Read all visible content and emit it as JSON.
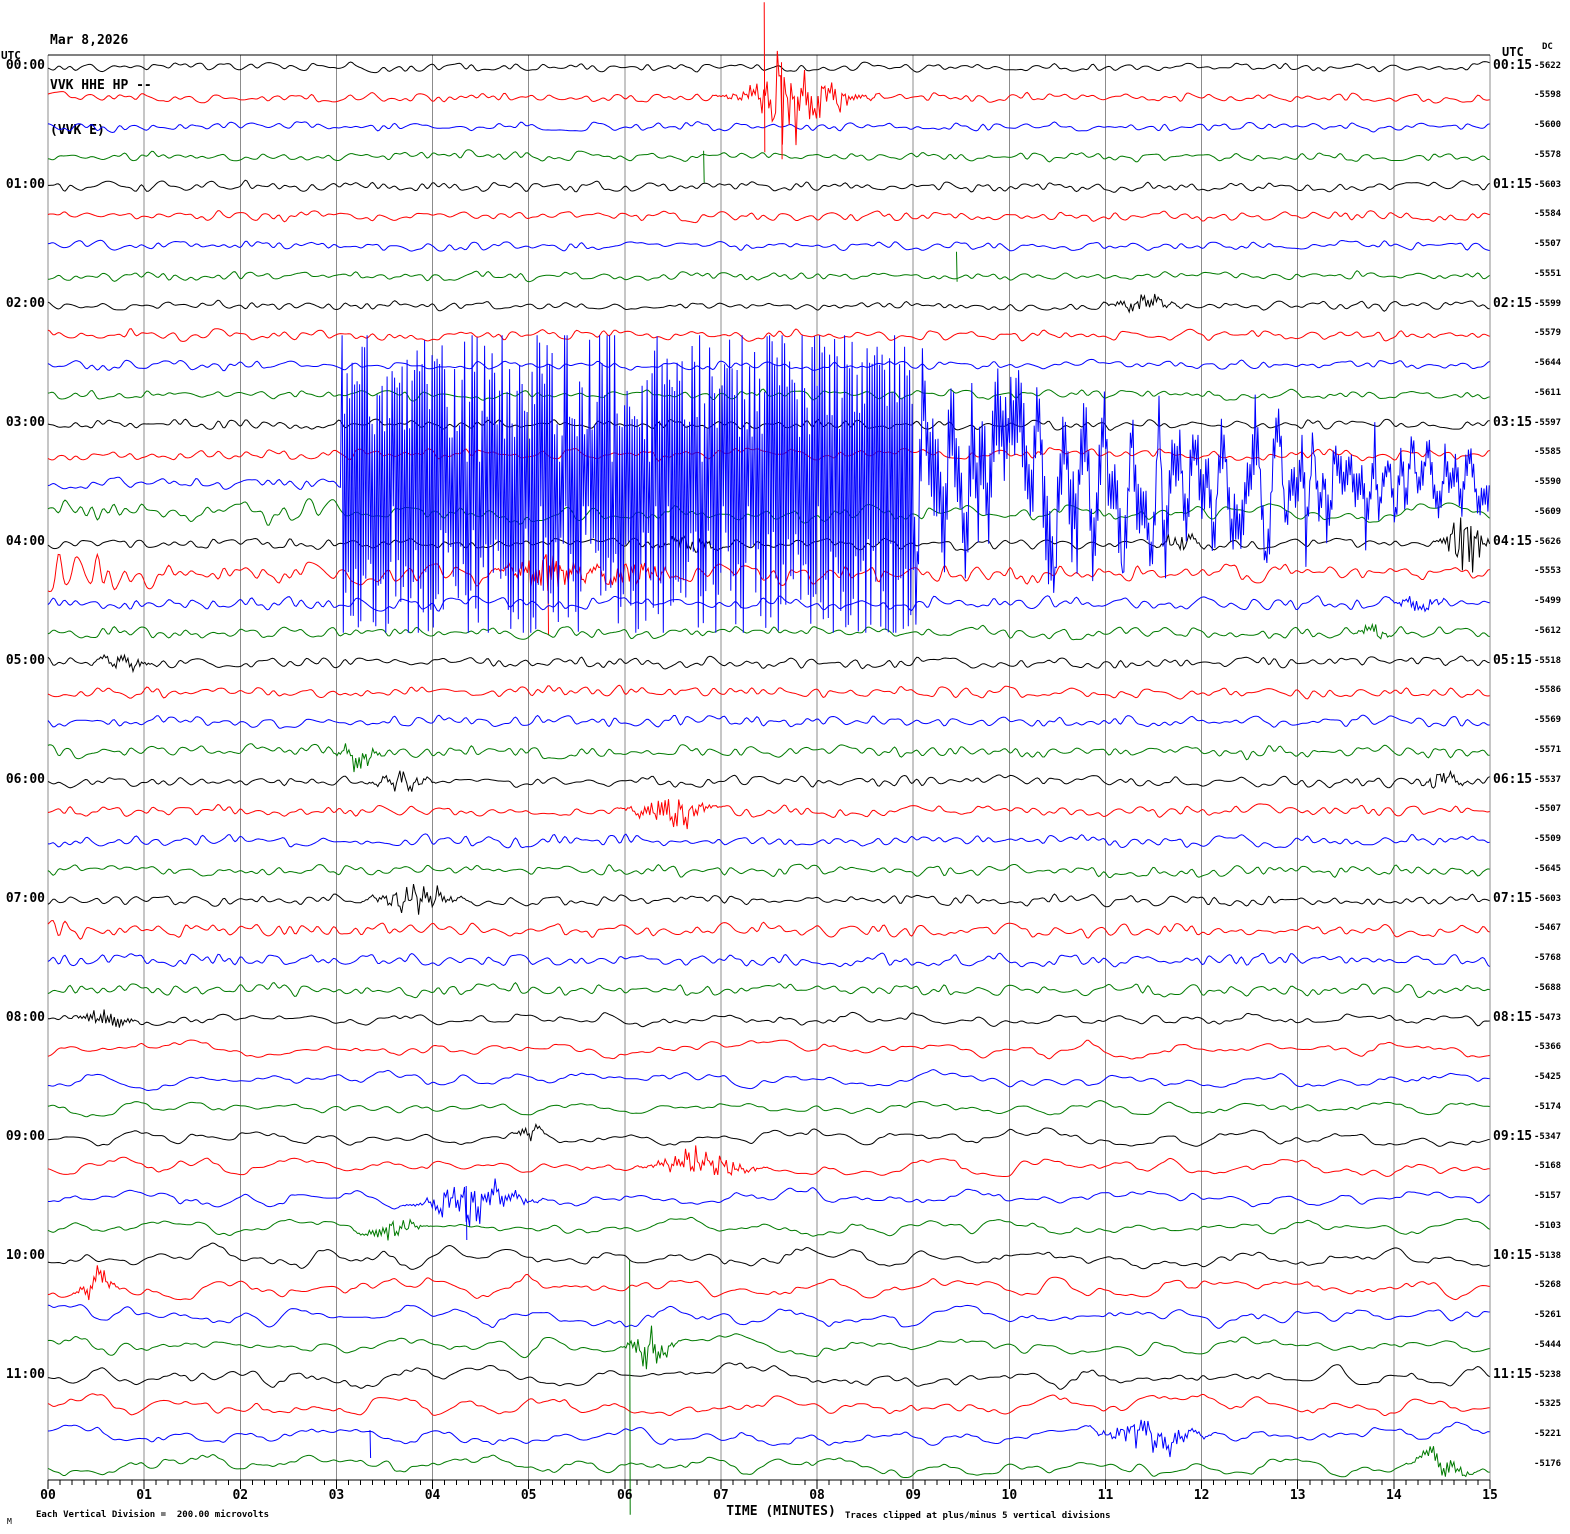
{
  "header": {
    "date": "Mar 8,2026",
    "station": "VVK HHE HP --",
    "channel": "(VVK E)"
  },
  "axes": {
    "left_utc_label": "UTC",
    "right_utc_label": "UTC",
    "dc_label": "DC",
    "x_title": "TIME (MINUTES)"
  },
  "footer": {
    "prefix": "M",
    "left_note": "Each Vertical Division =  200.00 microvolts",
    "right_note": "Traces clipped at plus/minus 5 vertical divisions"
  },
  "chart_data": {
    "type": "line",
    "subtype": "helicorder-seismogram",
    "minutes_per_row": 15,
    "x_range_minutes": [
      0,
      15
    ],
    "clip_divisions": 5,
    "microvolts_per_division": 200,
    "grid": "vertical-minute-lines",
    "trace_color_cycle": [
      "#000000",
      "#ff0000",
      "#0000ff",
      "#007a00"
    ],
    "grid_color": "#8c8c8c",
    "x_ticks": [
      "00",
      "01",
      "02",
      "03",
      "04",
      "05",
      "06",
      "07",
      "08",
      "09",
      "10",
      "11",
      "12",
      "13",
      "14",
      "15"
    ],
    "right_labels": [
      "00:15",
      "01:15",
      "02:15",
      "03:15",
      "04:15",
      "05:15",
      "06:15",
      "07:15",
      "08:15",
      "09:15",
      "10:15",
      "11:15"
    ],
    "dc_values": [
      -5622,
      -5598,
      -5600,
      -5578,
      -5603,
      -5584,
      -5507,
      -5551,
      -5599,
      -5579,
      -5644,
      -5611,
      -5597,
      -5585,
      -5590,
      -5609,
      -5626,
      -5553,
      -5499,
      -5612,
      -5518,
      -5586,
      -5569,
      -5571,
      -5537,
      -5507,
      -5509,
      -5645,
      -5603,
      -5467,
      -5768,
      -5688,
      -5473,
      -5366,
      -5425,
      -5174,
      -5347,
      -5168,
      -5157,
      -5103,
      -5138,
      -5268,
      -5261,
      -5444,
      -5238,
      -5325,
      -5221,
      -5176
    ],
    "rows": [
      {
        "utc": "00:00",
        "amp": 5,
        "slow": 0,
        "events": []
      },
      {
        "utc": "00:15",
        "amp": 5,
        "slow": 0,
        "events": [
          {
            "type": "burst",
            "t0": 7.15,
            "t1": 8.45,
            "amp": 30
          },
          {
            "type": "burst",
            "t0": 7.35,
            "t1": 7.85,
            "amp": 16
          },
          {
            "type": "spike",
            "t": 7.45,
            "up": 95,
            "down": 55
          },
          {
            "type": "spike",
            "t": 7.63,
            "up": 35,
            "down": 62
          }
        ]
      },
      {
        "utc": "00:30",
        "amp": 5,
        "slow": 0,
        "events": []
      },
      {
        "utc": "00:45",
        "amp": 5,
        "slow": 0,
        "events": [
          {
            "type": "spike",
            "t": 6.82,
            "up": 6,
            "down": 26
          }
        ]
      },
      {
        "utc": "01:00",
        "amp": 5.5,
        "slow": 0,
        "events": []
      },
      {
        "utc": "01:15",
        "amp": 5,
        "slow": 0,
        "events": []
      },
      {
        "utc": "01:30",
        "amp": 5,
        "slow": 0,
        "events": []
      },
      {
        "utc": "01:45",
        "amp": 5,
        "slow": 0,
        "events": [
          {
            "type": "spike",
            "t": 9.45,
            "up": 24,
            "down": 6
          }
        ]
      },
      {
        "utc": "02:00",
        "amp": 5,
        "slow": 0,
        "events": [
          {
            "type": "burst",
            "t0": 11.05,
            "t1": 11.7,
            "amp": 12
          }
        ]
      },
      {
        "utc": "02:15",
        "amp": 6,
        "slow": 0,
        "events": []
      },
      {
        "utc": "02:30",
        "amp": 5,
        "slow": 0,
        "events": []
      },
      {
        "utc": "02:45",
        "amp": 5,
        "slow": 0,
        "events": []
      },
      {
        "utc": "03:00",
        "amp": 5.5,
        "slow": 0,
        "events": []
      },
      {
        "utc": "03:15",
        "amp": 6,
        "slow": 0,
        "events": []
      },
      {
        "utc": "03:30",
        "amp": 6,
        "slow": 0,
        "events": [
          {
            "type": "clip",
            "t0": 3.05,
            "t1": 9.0
          },
          {
            "type": "decay",
            "t0": 9.0,
            "t1": 15,
            "a0": 115,
            "a1": 30
          }
        ]
      },
      {
        "utc": "03:45",
        "amp": 11,
        "slow": 0.5,
        "env": [
          [
            0,
            24
          ],
          [
            1.5,
            18
          ],
          [
            3.5,
            12
          ],
          [
            15,
            10
          ]
        ],
        "events": []
      },
      {
        "utc": "04:00",
        "amp": 6,
        "slow": 0,
        "events": [
          {
            "type": "burst",
            "t0": 6.3,
            "t1": 7.0,
            "amp": 9
          },
          {
            "type": "burst",
            "t0": 11.55,
            "t1": 12.0,
            "amp": 10
          },
          {
            "type": "burst",
            "t0": 14.5,
            "t1": 15,
            "amp": 40
          }
        ]
      },
      {
        "utc": "04:15",
        "amp": 7,
        "slow": 0,
        "env": [
          [
            0,
            40
          ],
          [
            0.5,
            26
          ],
          [
            1.3,
            12
          ],
          [
            15,
            8
          ]
        ],
        "events": [
          {
            "type": "burst",
            "t0": 4.75,
            "t1": 5.65,
            "amp": 26
          },
          {
            "type": "burst",
            "t0": 5.65,
            "t1": 6.5,
            "amp": 15
          },
          {
            "type": "spike",
            "t": 5.2,
            "up": 18,
            "down": 62
          }
        ]
      },
      {
        "utc": "04:30",
        "amp": 7,
        "slow": 0,
        "events": [
          {
            "type": "burst",
            "t0": 14.0,
            "t1": 14.5,
            "amp": 11
          }
        ]
      },
      {
        "utc": "04:45",
        "amp": 6.5,
        "slow": 0,
        "events": [
          {
            "type": "burst",
            "t0": 13.6,
            "t1": 13.95,
            "amp": 9
          }
        ]
      },
      {
        "utc": "05:00",
        "amp": 6,
        "slow": 0,
        "events": [
          {
            "type": "burst",
            "t0": 0.5,
            "t1": 1.1,
            "amp": 8
          }
        ]
      },
      {
        "utc": "05:15",
        "amp": 6,
        "slow": 0,
        "events": []
      },
      {
        "utc": "05:30",
        "amp": 6.5,
        "slow": 0,
        "events": []
      },
      {
        "utc": "05:45",
        "amp": 6.5,
        "slow": 0,
        "events": [
          {
            "type": "burst",
            "t0": 3.0,
            "t1": 3.45,
            "amp": 16
          }
        ]
      },
      {
        "utc": "06:00",
        "amp": 6,
        "slow": 0,
        "events": [
          {
            "type": "burst",
            "t0": 3.35,
            "t1": 4.0,
            "amp": 9
          },
          {
            "type": "burst",
            "t0": 14.3,
            "t1": 14.75,
            "amp": 9
          }
        ]
      },
      {
        "utc": "06:15",
        "amp": 6,
        "slow": 0,
        "events": [
          {
            "type": "burst",
            "t0": 6.05,
            "t1": 6.9,
            "amp": 20
          }
        ]
      },
      {
        "utc": "06:30",
        "amp": 6.5,
        "slow": 0,
        "events": []
      },
      {
        "utc": "06:45",
        "amp": 6.5,
        "slow": 0,
        "events": []
      },
      {
        "utc": "07:00",
        "amp": 6,
        "slow": 0,
        "events": [
          {
            "type": "burst",
            "t0": 3.35,
            "t1": 4.3,
            "amp": 13
          }
        ]
      },
      {
        "utc": "07:15",
        "amp": 6.5,
        "slow": 0,
        "env": [
          [
            0,
            16
          ],
          [
            0.6,
            8
          ],
          [
            15,
            6.5
          ]
        ],
        "events": []
      },
      {
        "utc": "07:30",
        "amp": 7,
        "slow": 0,
        "events": []
      },
      {
        "utc": "07:45",
        "amp": 7,
        "slow": 0,
        "events": []
      },
      {
        "utc": "08:00",
        "amp": 7,
        "slow": 0.5,
        "events": [
          {
            "type": "burst",
            "t0": 0.3,
            "t1": 0.9,
            "amp": 15
          }
        ]
      },
      {
        "utc": "08:15",
        "amp": 9,
        "slow": 1,
        "events": []
      },
      {
        "utc": "08:30",
        "amp": 9,
        "slow": 1,
        "events": []
      },
      {
        "utc": "08:45",
        "amp": 8,
        "slow": 1,
        "events": []
      },
      {
        "utc": "09:00",
        "amp": 9,
        "slow": 1,
        "events": [
          {
            "type": "burst",
            "t0": 4.85,
            "t1": 5.15,
            "amp": 10
          }
        ]
      },
      {
        "utc": "09:15",
        "amp": 10,
        "slow": 1,
        "events": [
          {
            "type": "burst",
            "t0": 6.25,
            "t1": 7.35,
            "amp": 16
          }
        ]
      },
      {
        "utc": "09:30",
        "amp": 10,
        "slow": 1,
        "events": [
          {
            "type": "burst",
            "t0": 3.85,
            "t1": 5.0,
            "amp": 22
          },
          {
            "type": "spike",
            "t": 4.35,
            "up": 12,
            "down": 42
          }
        ]
      },
      {
        "utc": "09:45",
        "amp": 9,
        "slow": 1,
        "events": [
          {
            "type": "burst",
            "t0": 3.25,
            "t1": 3.9,
            "amp": 12
          }
        ]
      },
      {
        "utc": "10:00",
        "amp": 11,
        "slow": 1,
        "events": []
      },
      {
        "utc": "10:15",
        "amp": 11,
        "slow": 1,
        "events": [
          {
            "type": "burst",
            "t0": 0.3,
            "t1": 0.7,
            "amp": 16
          }
        ]
      },
      {
        "utc": "10:30",
        "amp": 11,
        "slow": 1,
        "events": []
      },
      {
        "utc": "10:45",
        "amp": 10,
        "slow": 1,
        "events": [
          {
            "type": "burst",
            "t0": 6.02,
            "t1": 6.5,
            "amp": 28
          },
          {
            "type": "spike",
            "t": 6.05,
            "up": 87,
            "down": 168
          }
        ]
      },
      {
        "utc": "11:00",
        "amp": 11,
        "slow": 1,
        "events": []
      },
      {
        "utc": "11:15",
        "amp": 12,
        "slow": 1,
        "events": []
      },
      {
        "utc": "11:30",
        "amp": 11,
        "slow": 1,
        "events": [
          {
            "type": "burst",
            "t0": 10.95,
            "t1": 12.0,
            "amp": 18
          },
          {
            "type": "spike",
            "t": 3.35,
            "up": 6,
            "down": 22
          }
        ]
      },
      {
        "utc": "11:45",
        "amp": 10,
        "slow": 1,
        "events": [
          {
            "type": "burst",
            "t0": 14.2,
            "t1": 14.8,
            "amp": 14
          }
        ]
      }
    ]
  }
}
